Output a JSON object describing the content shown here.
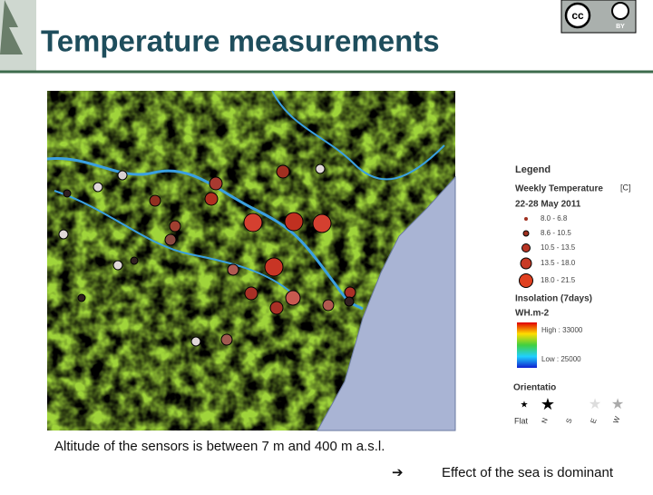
{
  "header": {
    "title": "Temperature measurements",
    "license": {
      "cc": "cc",
      "by": "BY"
    }
  },
  "legend": {
    "title": "Legend",
    "temperature": {
      "title": "Weekly Temperature",
      "unit": "[C]",
      "period": "22-28 May 2011",
      "classes": [
        "8.0 - 6.8",
        "8.6 - 10.5",
        "10.5 - 13.5",
        "13.5 - 18.0",
        "18.0 - 21.5"
      ]
    },
    "insolation": {
      "title": "Insolation (7days)",
      "unit": "WH.m-2",
      "high": "High : 33000",
      "low": "Low : 25000"
    },
    "orientation": {
      "title": "Orientatio",
      "classes": [
        "Flat",
        "N",
        "S",
        "E",
        "W"
      ]
    }
  },
  "caption": "Altitude of the sensors is between 7 m and 400 m a.s.l.",
  "conclusion": "Effect of the sea is dominant"
}
